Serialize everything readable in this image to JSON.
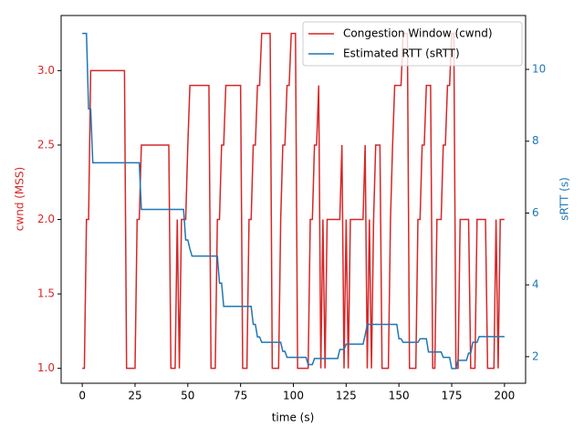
{
  "chart_data": {
    "type": "line",
    "xlabel": "time (s)",
    "ylabel": "cwnd (MSS)",
    "y2label": "sRTT (s)",
    "xlim": [
      -10,
      210
    ],
    "xticks": [
      0,
      25,
      50,
      75,
      100,
      125,
      150,
      175,
      200
    ],
    "ylim": [
      0.9,
      3.37
    ],
    "yticks": [
      {
        "value": 1,
        "label": "1.0"
      },
      {
        "value": 1.5,
        "label": "1.5"
      },
      {
        "value": 2,
        "label": "2.0"
      },
      {
        "value": 2.5,
        "label": "2.5"
      },
      {
        "value": 3,
        "label": "3.0"
      }
    ],
    "y2lim": [
      1.26,
      11.5
    ],
    "y2ticks": [
      2,
      4,
      6,
      8,
      10
    ],
    "legend": "upper right",
    "x": [
      0,
      1,
      2,
      3,
      4,
      5,
      6,
      7,
      8,
      9,
      10,
      11,
      12,
      13,
      14,
      15,
      16,
      17,
      18,
      19,
      20,
      21,
      22,
      23,
      24,
      25,
      26,
      27,
      28,
      29,
      30,
      31,
      32,
      33,
      34,
      35,
      36,
      37,
      38,
      39,
      40,
      41,
      42,
      43,
      44,
      45,
      46,
      47,
      48,
      49,
      50,
      51,
      52,
      53,
      54,
      55,
      56,
      57,
      58,
      59,
      60,
      61,
      62,
      63,
      64,
      65,
      66,
      67,
      68,
      69,
      70,
      71,
      72,
      73,
      74,
      75,
      76,
      77,
      78,
      79,
      80,
      81,
      82,
      83,
      84,
      85,
      86,
      87,
      88,
      89,
      90,
      91,
      92,
      93,
      94,
      95,
      96,
      97,
      98,
      99,
      100,
      101,
      102,
      103,
      104,
      105,
      106,
      107,
      108,
      109,
      110,
      111,
      112,
      113,
      114,
      115,
      116,
      117,
      118,
      119,
      120,
      121,
      122,
      123,
      124,
      125,
      126,
      127,
      128,
      129,
      130,
      131,
      132,
      133,
      134,
      135,
      136,
      137,
      138,
      139,
      140,
      141,
      142,
      143,
      144,
      145,
      146,
      147,
      148,
      149,
      150,
      151,
      152,
      153,
      154,
      155,
      156,
      157,
      158,
      159,
      160,
      161,
      162,
      163,
      164,
      165,
      166,
      167,
      168,
      169,
      170,
      171,
      172,
      173,
      174,
      175,
      176,
      177,
      178,
      179,
      180,
      181,
      182,
      183,
      184,
      185,
      186,
      187,
      188,
      189,
      190,
      191,
      192,
      193,
      194,
      195,
      196,
      197,
      198,
      199,
      200
    ],
    "series": [
      {
        "name": "Congestion Window (cwnd)",
        "color": "#d62728",
        "axis": "y",
        "values": [
          1,
          1,
          2,
          2,
          3,
          3,
          3,
          3,
          3,
          3,
          3,
          3,
          3,
          3,
          3,
          3,
          3,
          3,
          3,
          3,
          3,
          1,
          1,
          1,
          1,
          1,
          2,
          2,
          2.5,
          2.5,
          2.5,
          2.5,
          2.5,
          2.5,
          2.5,
          2.5,
          2.5,
          2.5,
          2.5,
          2.5,
          2.5,
          2.5,
          1,
          1,
          1,
          2,
          1,
          2,
          2,
          2,
          2.5,
          2.9,
          2.9,
          2.9,
          2.9,
          2.9,
          2.9,
          2.9,
          2.9,
          2.9,
          2.9,
          1,
          1,
          1,
          2,
          2,
          2.5,
          2.5,
          2.9,
          2.9,
          2.9,
          2.9,
          2.9,
          2.9,
          2.9,
          2.9,
          1,
          1,
          1,
          2,
          2,
          2.5,
          2.5,
          2.9,
          2.9,
          3.25,
          3.25,
          3.25,
          3.25,
          3.25,
          1,
          1,
          1,
          1,
          2,
          2.5,
          2.5,
          2.9,
          2.9,
          3.25,
          3.25,
          3.25,
          1,
          1,
          1,
          1,
          1,
          1,
          2,
          2,
          2.5,
          2.5,
          2.9,
          1,
          2,
          1,
          2,
          2,
          2,
          2,
          2,
          2,
          2,
          2.5,
          1,
          2,
          1,
          2,
          2,
          2,
          2,
          2,
          2,
          2,
          2.5,
          1,
          2,
          1,
          2,
          2.5,
          2.5,
          2.5,
          1,
          1,
          1,
          1,
          2,
          2.5,
          2.9,
          2.9,
          2.9,
          2.9,
          3.25,
          3.25,
          3.25,
          1,
          1,
          1,
          1,
          2,
          2,
          2.5,
          2.5,
          2.9,
          2.9,
          2.9,
          1,
          1,
          2,
          2,
          2,
          2.5,
          2.5,
          2.9,
          2.9,
          3.25,
          3.25,
          1,
          1,
          2,
          2,
          2,
          2,
          2,
          1,
          1,
          1,
          2,
          2,
          2,
          2,
          2,
          1,
          1,
          1,
          1,
          2,
          1,
          2,
          2,
          2
        ]
      },
      {
        "name": "Estimated RTT (sRTT)",
        "color": "#1f77b4",
        "axis": "y2",
        "values": [
          11,
          11,
          11,
          8.9,
          8.9,
          7.4,
          7.4,
          7.4,
          7.4,
          7.4,
          7.4,
          7.4,
          7.4,
          7.4,
          7.4,
          7.4,
          7.4,
          7.4,
          7.4,
          7.4,
          7.4,
          7.4,
          7.4,
          7.4,
          7.4,
          7.4,
          7.4,
          7.4,
          6.1,
          6.1,
          6.1,
          6.1,
          6.1,
          6.1,
          6.1,
          6.1,
          6.1,
          6.1,
          6.1,
          6.1,
          6.1,
          6.1,
          6.1,
          6.1,
          6.1,
          6.1,
          6.1,
          6.1,
          6.1,
          5.25,
          5.25,
          5,
          4.8,
          4.8,
          4.8,
          4.8,
          4.8,
          4.8,
          4.8,
          4.8,
          4.8,
          4.8,
          4.8,
          4.8,
          4.8,
          4.05,
          4.05,
          3.4,
          3.4,
          3.4,
          3.4,
          3.4,
          3.4,
          3.4,
          3.4,
          3.4,
          3.4,
          3.4,
          3.4,
          3.4,
          3.4,
          2.9,
          2.9,
          2.55,
          2.55,
          2.4,
          2.4,
          2.4,
          2.4,
          2.4,
          2.4,
          2.4,
          2.4,
          2.4,
          2.4,
          2.15,
          2.15,
          1.98,
          1.98,
          1.98,
          1.98,
          1.98,
          1.98,
          1.98,
          1.98,
          1.98,
          1.98,
          1.78,
          1.78,
          1.78,
          1.95,
          1.95,
          1.95,
          1.95,
          1.95,
          1.95,
          1.95,
          1.95,
          1.95,
          1.95,
          1.95,
          1.95,
          2.2,
          2.2,
          2.2,
          2.35,
          2.35,
          2.35,
          2.35,
          2.35,
          2.35,
          2.35,
          2.35,
          2.35,
          2.6,
          2.9,
          2.9,
          2.9,
          2.9,
          2.9,
          2.9,
          2.9,
          2.9,
          2.9,
          2.9,
          2.9,
          2.9,
          2.9,
          2.9,
          2.9,
          2.5,
          2.5,
          2.4,
          2.4,
          2.4,
          2.4,
          2.4,
          2.4,
          2.4,
          2.4,
          2.5,
          2.5,
          2.5,
          2.5,
          2.13,
          2.13,
          2.13,
          2.13,
          2.13,
          2.13,
          2.13,
          1.98,
          1.98,
          1.98,
          1.98,
          1.67,
          1.67,
          1.67,
          1.9,
          1.9,
          1.9,
          1.9,
          1.9,
          2.1,
          2.1,
          2.4,
          2.4,
          2.4,
          2.56,
          2.56,
          2.56,
          2.56,
          2.56,
          2.56,
          2.56,
          2.56,
          2.56,
          2.56,
          2.56,
          2.56,
          2.56
        ]
      }
    ]
  }
}
